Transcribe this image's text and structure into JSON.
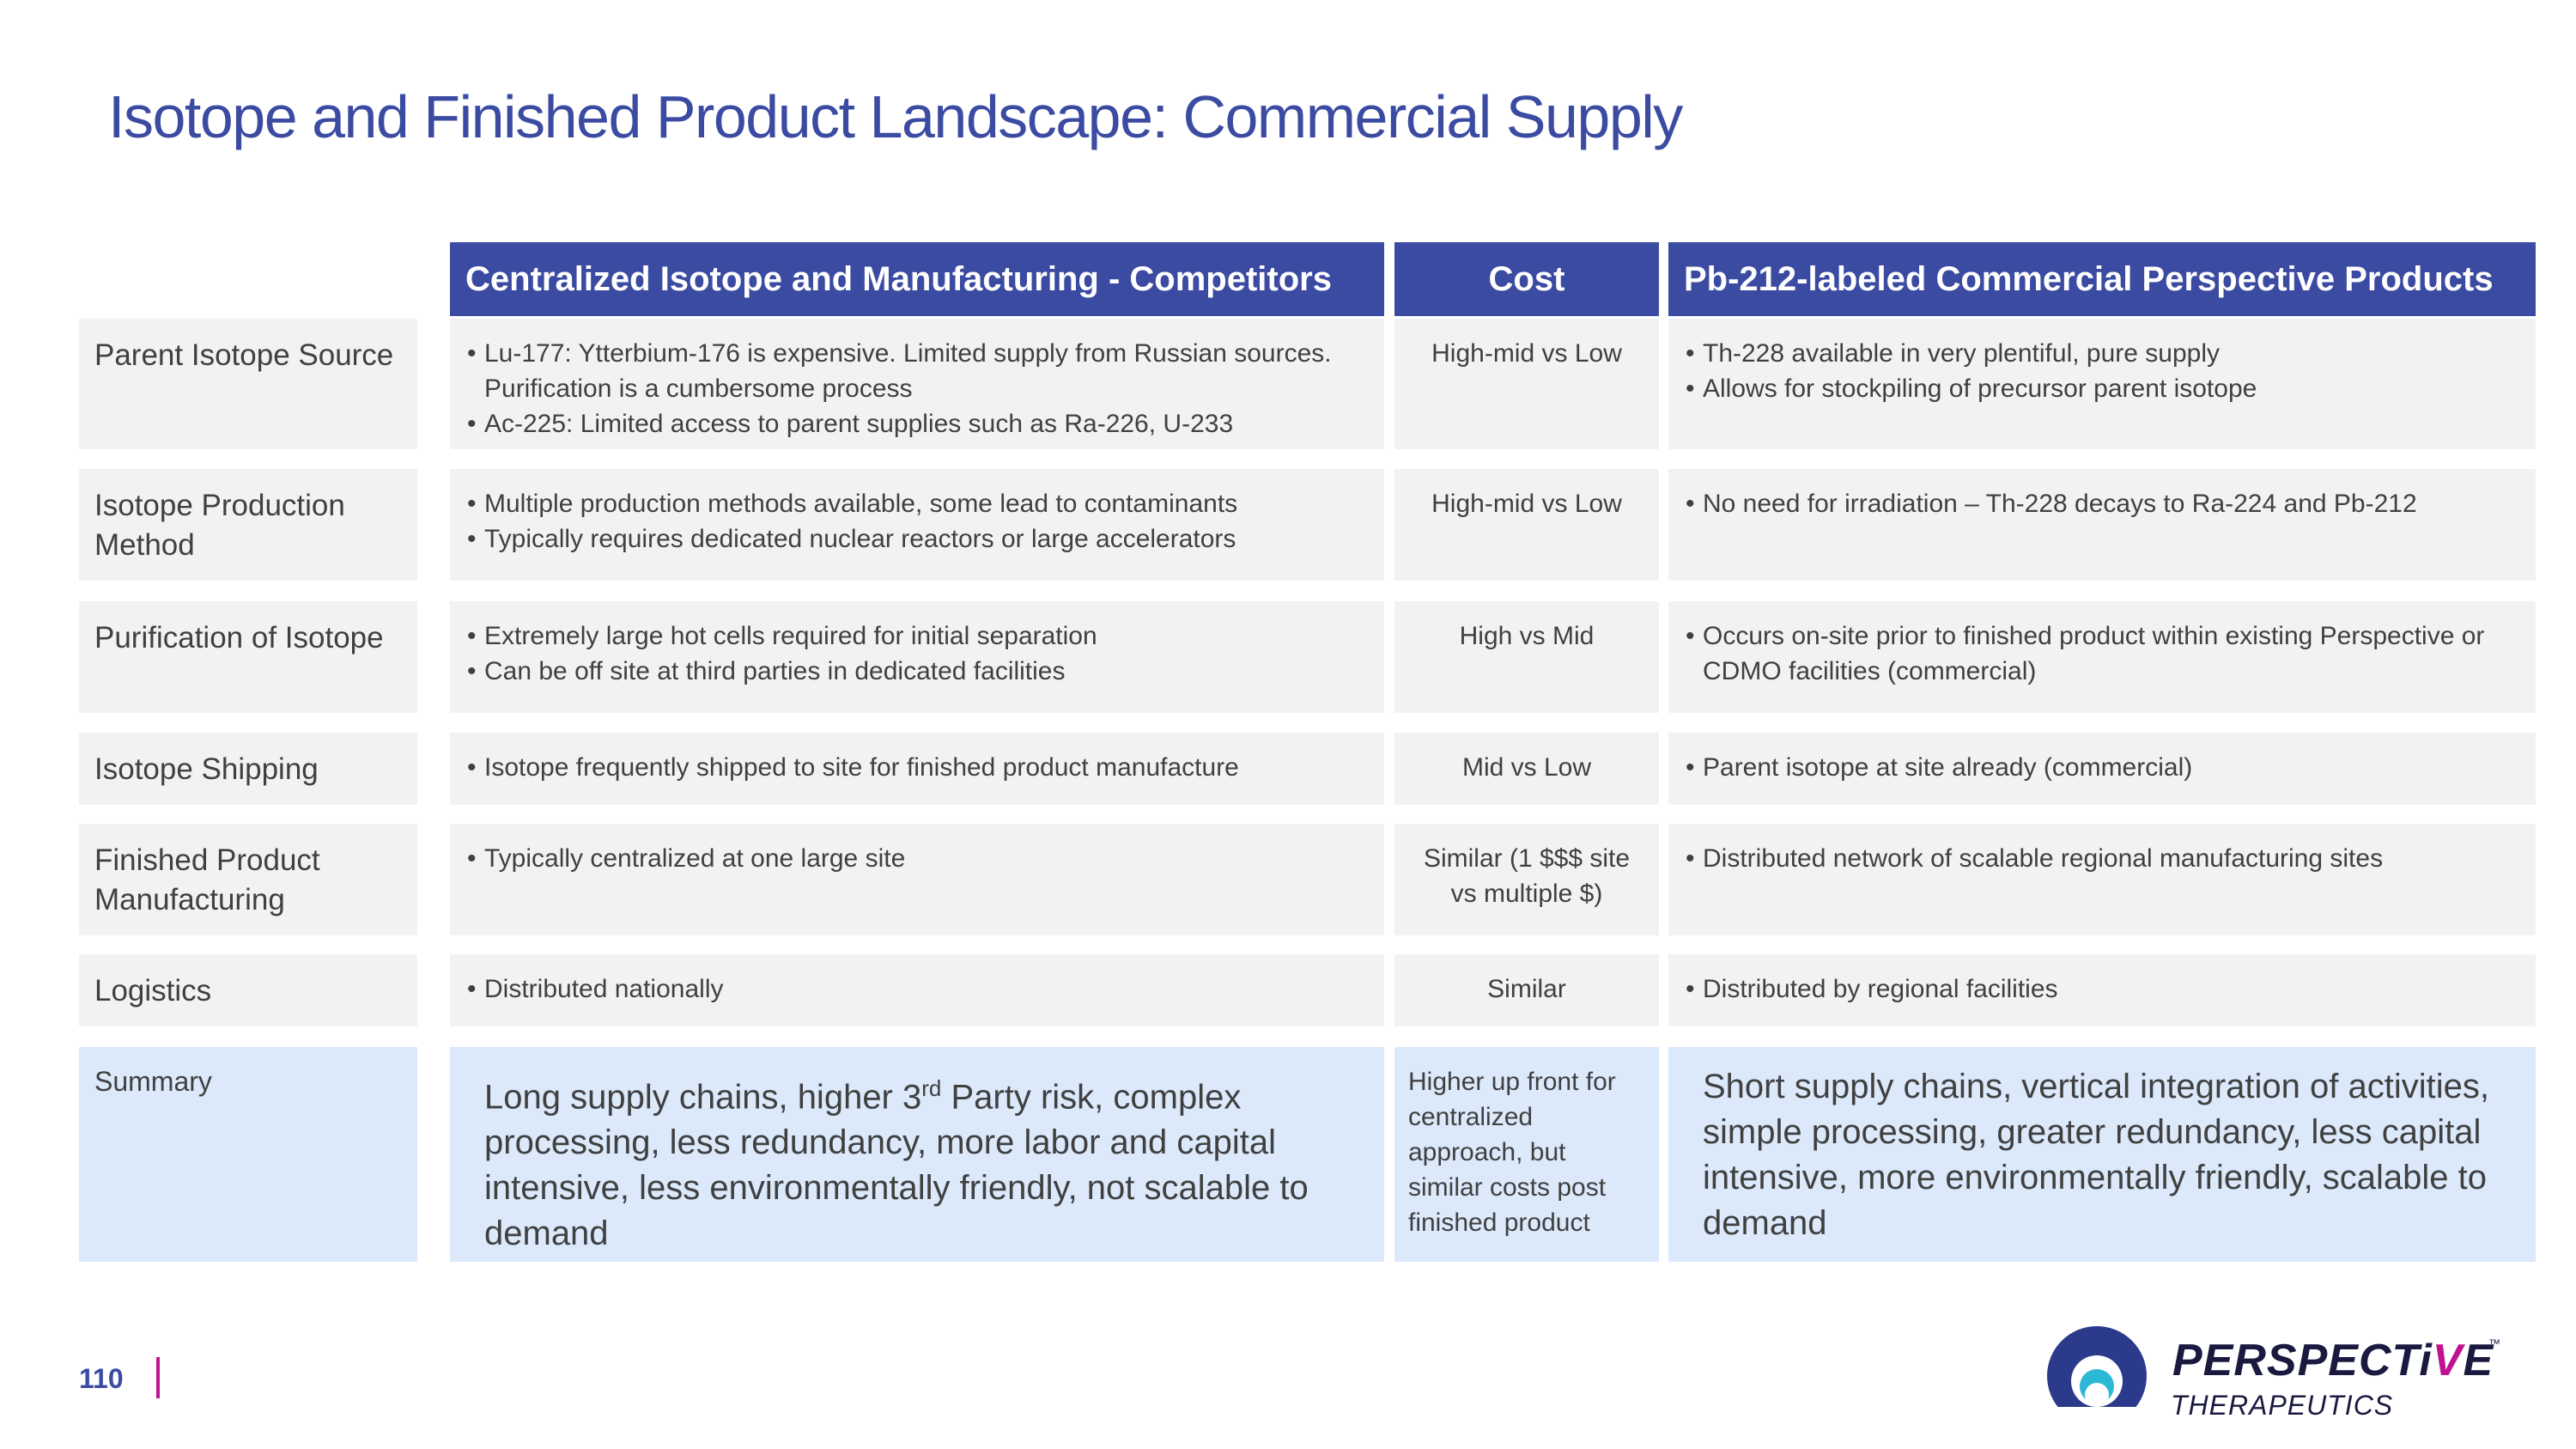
{
  "title": "Isotope and Finished Product Landscape: Commercial Supply",
  "headers": {
    "competitors": "Centralized Isotope and Manufacturing - Competitors",
    "cost": "Cost",
    "perspective": "Pb-212-labeled Commercial Perspective Products"
  },
  "rows": [
    {
      "label": "Parent Isotope Source",
      "competitors": [
        "Lu-177: Ytterbium-176 is expensive. Limited supply from Russian sources. Purification is a cumbersome process",
        "Ac-225: Limited access to parent supplies such as Ra-226, U-233"
      ],
      "cost": "High-mid vs Low",
      "perspective": [
        "Th-228 available in very plentiful, pure supply",
        "Allows for stockpiling of precursor parent isotope"
      ]
    },
    {
      "label": "Isotope Production Method",
      "competitors": [
        "Multiple production methods available, some lead to contaminants",
        "Typically requires dedicated nuclear reactors or large accelerators"
      ],
      "cost": "High-mid vs Low",
      "perspective": [
        "No need for irradiation – Th-228 decays to Ra-224 and Pb-212"
      ]
    },
    {
      "label": "Purification of Isotope",
      "competitors": [
        "Extremely large hot cells required for initial separation",
        "Can be off site at third parties in dedicated facilities"
      ],
      "cost": "High vs Mid",
      "perspective": [
        "Occurs on-site prior to finished product within existing Perspective or CDMO facilities (commercial)"
      ]
    },
    {
      "label": "Isotope Shipping",
      "competitors": [
        "Isotope frequently shipped to site for finished product manufacture"
      ],
      "cost": "Mid vs Low",
      "perspective": [
        "Parent isotope at site already (commercial)"
      ]
    },
    {
      "label": "Finished Product Manufacturing",
      "competitors": [
        "Typically centralized at one large site"
      ],
      "cost": "Similar (1 $$$ site vs multiple $)",
      "perspective": [
        "Distributed network of scalable regional manufacturing sites"
      ]
    },
    {
      "label": "Logistics",
      "competitors": [
        "Distributed nationally"
      ],
      "cost": "Similar",
      "perspective": [
        "Distributed by regional facilities"
      ]
    }
  ],
  "summary": {
    "label": "Summary",
    "competitors_pre": "Long supply chains, higher 3",
    "competitors_sup": "rd",
    "competitors_post": " Party risk, complex processing, less redundancy, more labor and capital intensive, less environmentally friendly, not scalable to demand",
    "cost": "Higher up front for centralized approach, but similar costs post finished product",
    "perspective": "Short supply chains, vertical integration of activities, simple processing, greater redundancy, less capital intensive, more environmentally friendly, scalable to demand"
  },
  "footer": {
    "page_number": "110",
    "logo_word": "PERSPECTiVE",
    "logo_tm": "™",
    "logo_sub": "THERAPEUTICS"
  },
  "colors": {
    "header_bg": "#3b4ba2",
    "title": "#3b4ba2",
    "cell_bg": "#f2f2f2",
    "summary_bg": "#dbe9fb",
    "accent": "#c0138f"
  }
}
